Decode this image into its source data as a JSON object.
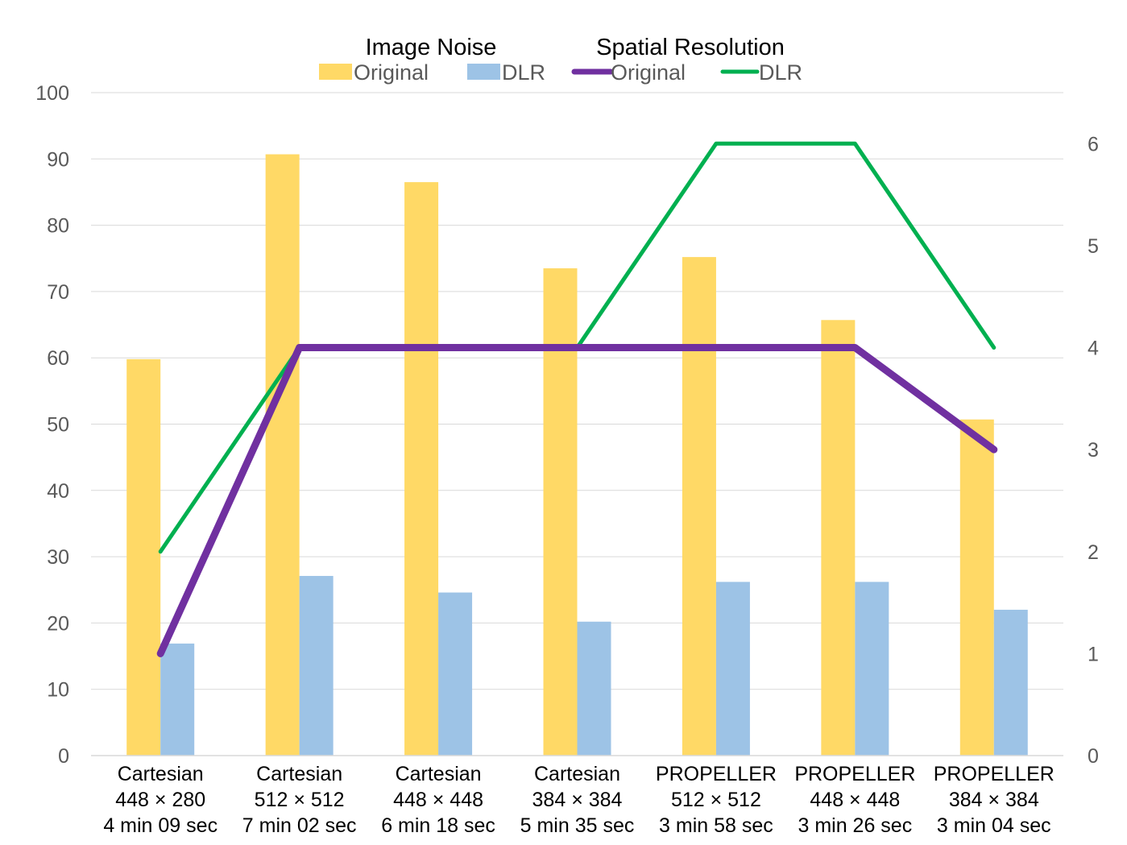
{
  "chart_data": {
    "type": "bar",
    "categories": [
      [
        "Cartesian",
        "448 × 280",
        "4 min 09 sec"
      ],
      [
        "Cartesian",
        "512 × 512",
        "7 min 02 sec"
      ],
      [
        "Cartesian",
        "448 × 448",
        "6 min 18 sec"
      ],
      [
        "Cartesian",
        "384 × 384",
        "5 min 35 sec"
      ],
      [
        "PROPELLER",
        "512 × 512",
        "3 min 58 sec"
      ],
      [
        "PROPELLER",
        "448 × 448",
        "3 min 26 sec"
      ],
      [
        "PROPELLER",
        "384 × 384",
        "3 min 04 sec"
      ]
    ],
    "legend": {
      "image_noise_title": "Image Noise",
      "spatial_resolution_title": "Spatial Resolution",
      "placement": "top-center"
    },
    "series": [
      {
        "name": "Original",
        "group": "Image Noise",
        "kind": "bar",
        "axis": "left",
        "color": "#FFD966",
        "values": [
          59.8,
          90.7,
          86.5,
          73.5,
          75.2,
          65.7,
          50.7
        ]
      },
      {
        "name": "DLR",
        "group": "Image Noise",
        "kind": "bar",
        "axis": "left",
        "color": "#9DC3E6",
        "values": [
          16.9,
          27.1,
          24.6,
          20.2,
          26.2,
          26.2,
          22.0
        ]
      },
      {
        "name": "Original",
        "group": "Spatial Resolution",
        "kind": "line",
        "axis": "right",
        "color": "#7030A0",
        "values": [
          1,
          4,
          4,
          4,
          4,
          4,
          3
        ]
      },
      {
        "name": "DLR",
        "group": "Spatial Resolution",
        "kind": "line",
        "axis": "right",
        "color": "#00B050",
        "values": [
          2,
          4,
          4,
          4,
          6,
          6,
          4
        ]
      }
    ],
    "y_left": {
      "label": "",
      "lim": [
        0,
        100
      ],
      "ticks": [
        0,
        10,
        20,
        30,
        40,
        50,
        60,
        70,
        80,
        90,
        100
      ]
    },
    "y_right": {
      "label": "",
      "lim": [
        0,
        6.5
      ],
      "ticks": [
        0,
        1,
        2,
        3,
        4,
        5,
        6
      ]
    },
    "grid": true,
    "title": "",
    "xlabel": ""
  }
}
